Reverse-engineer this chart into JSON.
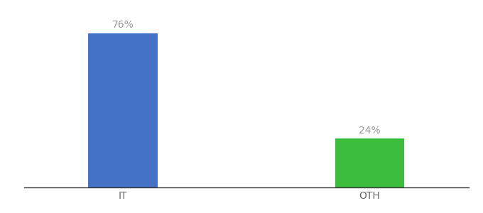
{
  "categories": [
    "IT",
    "OTH"
  ],
  "values": [
    76,
    24
  ],
  "bar_colors": [
    "#4472C4",
    "#3DBD3D"
  ],
  "label_texts": [
    "76%",
    "24%"
  ],
  "ylim": [
    0,
    85
  ],
  "bar_width": 0.28,
  "background_color": "#ffffff",
  "label_color": "#999999",
  "label_fontsize": 10,
  "tick_fontsize": 10,
  "tick_color": "#666666",
  "spine_color": "#333333",
  "x_positions": [
    1,
    2
  ]
}
